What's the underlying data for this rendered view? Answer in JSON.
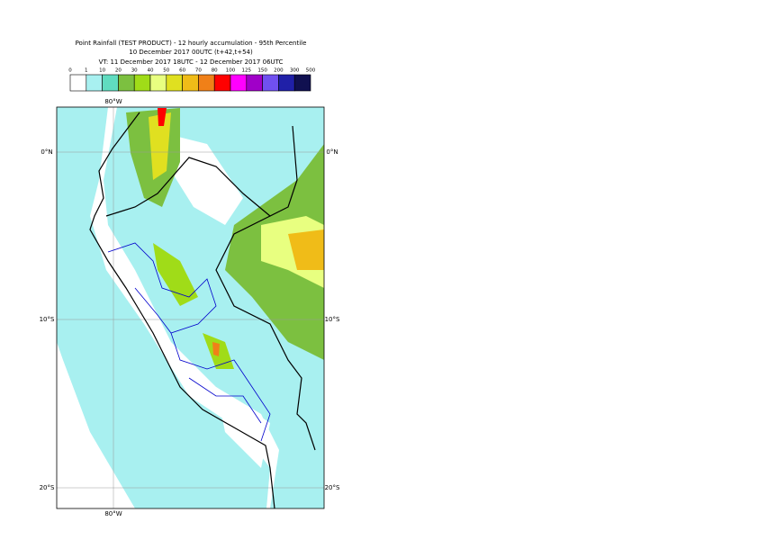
{
  "header": {
    "title": "Point Rainfall (TEST PRODUCT) - 12 hourly accumulation - 95th Percentile",
    "base_time": "10 December 2017 00UTC (t+42,t+54)",
    "valid_time": "VT: 11 December 2017 18UTC - 12 December 2017 06UTC"
  },
  "colorbar": {
    "labels": [
      "0",
      "1",
      "10",
      "20",
      "30",
      "40",
      "50",
      "60",
      "70",
      "80",
      "100",
      "125",
      "150",
      "200",
      "300",
      "500"
    ],
    "colors": [
      "#ffffff",
      "#a8f0f0",
      "#60dcc0",
      "#7cc040",
      "#a0dc18",
      "#e8ff80",
      "#e0e020",
      "#f0bc18",
      "#f08018",
      "#ff0000",
      "#ff00ff",
      "#a000c8",
      "#7050f0",
      "#2020a8",
      "#101050"
    ]
  },
  "map": {
    "lon_label_top": "80°W",
    "lon_label_bottom": "80°W",
    "lat_labels_left": [
      "0°N",
      "10°S",
      "20°S"
    ],
    "lat_labels_right": [
      "0°N",
      "10°S",
      "20°S"
    ]
  }
}
